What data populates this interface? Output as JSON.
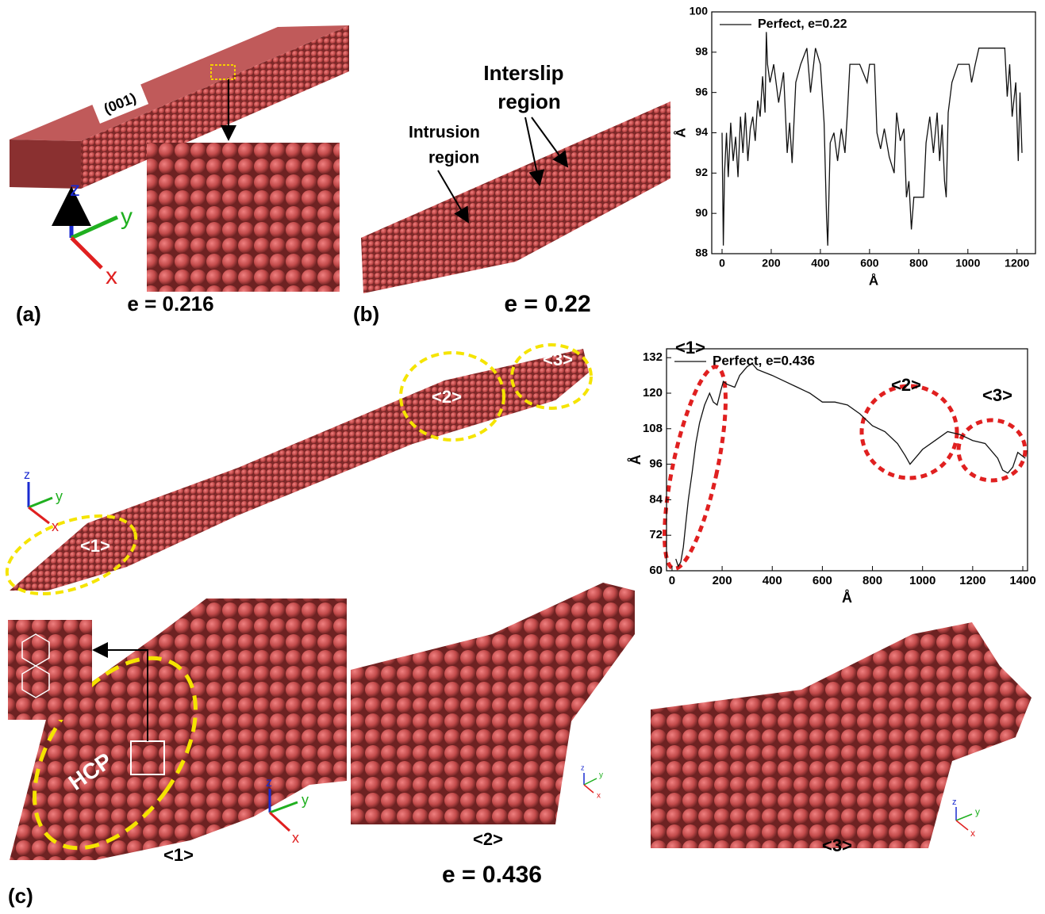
{
  "chart_data": [
    {
      "type": "line",
      "legend": "upper left",
      "xlabel": "Å",
      "ylabel": "Å",
      "xlim": [
        -42,
        1275
      ],
      "ylim": [
        88,
        100
      ],
      "xticks": [
        0,
        200,
        400,
        600,
        800,
        1000,
        1200
      ],
      "yticks": [
        88,
        90,
        92,
        94,
        96,
        98,
        100
      ],
      "x": [
        0,
        5,
        10,
        18,
        25,
        35,
        45,
        55,
        65,
        75,
        85,
        95,
        105,
        115,
        125,
        135,
        145,
        155,
        165,
        175,
        180,
        185,
        195,
        210,
        230,
        250,
        265,
        275,
        285,
        300,
        320,
        345,
        360,
        380,
        400,
        415,
        425,
        430,
        440,
        455,
        470,
        485,
        500,
        510,
        520,
        560,
        590,
        600,
        620,
        630,
        645,
        660,
        680,
        700,
        710,
        725,
        740,
        750,
        760,
        770,
        780,
        820,
        830,
        845,
        860,
        875,
        885,
        895,
        905,
        912,
        920,
        935,
        960,
        1005,
        1015,
        1030,
        1045,
        1150,
        1160,
        1170,
        1180,
        1195,
        1205,
        1212,
        1220
      ],
      "series": [
        {
          "name": "Perfect, e=0.22",
          "color": "#111111",
          "values": [
            94,
            88.4,
            92,
            94,
            91.8,
            94.5,
            92.6,
            93.8,
            91.8,
            94.8,
            93,
            95,
            92.6,
            94.2,
            94.8,
            93.6,
            95.6,
            94.8,
            96.8,
            95,
            99,
            97.4,
            96.5,
            97.4,
            95.5,
            97,
            93,
            94.5,
            92.5,
            96.5,
            97.4,
            98.2,
            96,
            98.2,
            97.4,
            94.5,
            89.8,
            88.4,
            93.5,
            94,
            92.6,
            94.2,
            93,
            95,
            97.4,
            97.4,
            96.5,
            97.4,
            97.4,
            94,
            93.2,
            94.2,
            92.8,
            92,
            95,
            93.6,
            94.2,
            90.8,
            91.6,
            89.2,
            90.8,
            90.8,
            93.5,
            94.8,
            93,
            95,
            92.6,
            94.4,
            91.6,
            90.8,
            95,
            96.5,
            97.4,
            97.4,
            96.5,
            97.4,
            98.2,
            98.2,
            95.8,
            97.4,
            94.8,
            96.5,
            92.6,
            96,
            93
          ]
        }
      ]
    },
    {
      "type": "line",
      "legend": "upper left",
      "xlabel": "Å",
      "ylabel": "Å",
      "xlim": [
        -22,
        1419
      ],
      "ylim": [
        60,
        135
      ],
      "xticks": [
        0,
        200,
        400,
        600,
        800,
        1000,
        1200,
        1400
      ],
      "yticks": [
        60,
        72,
        84,
        96,
        108,
        120,
        132
      ],
      "x": [
        15,
        25,
        35,
        45,
        55,
        65,
        80,
        95,
        110,
        130,
        150,
        165,
        180,
        195,
        205,
        220,
        250,
        270,
        300,
        320,
        340,
        370,
        400,
        450,
        500,
        550,
        600,
        650,
        700,
        750,
        800,
        850,
        900,
        930,
        950,
        980,
        1000,
        1050,
        1100,
        1150,
        1200,
        1250,
        1300,
        1320,
        1340,
        1360,
        1380,
        1410
      ],
      "series": [
        {
          "name": "Perfect, e=0.436",
          "color": "#111111",
          "values": [
            64,
            61.5,
            63,
            68,
            76,
            84,
            93,
            103,
            110,
            116,
            120,
            117,
            116,
            121,
            124,
            123,
            122,
            126,
            129,
            130,
            128,
            127,
            126,
            124,
            122,
            120,
            117,
            117,
            116,
            113,
            109,
            107,
            103,
            99,
            96,
            99,
            101,
            104,
            107,
            106,
            104,
            103,
            98,
            94,
            93,
            95,
            100,
            98
          ]
        }
      ],
      "annotations": [
        "<1>",
        "<2>",
        "<3>"
      ]
    }
  ],
  "figure": {
    "panels": [
      "(a)",
      "(b)",
      "(c)"
    ],
    "strain": [
      "e = 0.216",
      "e = 0.22",
      "e = 0.436"
    ],
    "plane": "(001)",
    "intrusion": [
      "Intrusion",
      "region"
    ],
    "interslip": [
      "Interslip",
      "region"
    ],
    "regions": [
      "<1>",
      "<2>",
      "<3>"
    ],
    "hcp": "HCP",
    "axes": {
      "x": "x",
      "y": "y",
      "z": "z"
    }
  }
}
